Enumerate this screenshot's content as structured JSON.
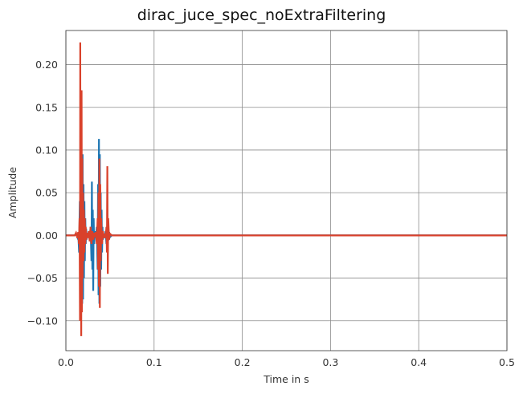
{
  "chart_data": {
    "type": "line",
    "title": "dirac_juce_spec_noExtraFiltering",
    "xlabel": "Time in s",
    "ylabel": "Amplitude",
    "xlim": [
      0.0,
      0.5
    ],
    "ylim": [
      -0.135,
      0.24
    ],
    "grid": true,
    "legend": "none",
    "x_ticks": [
      "0.0",
      "0.1",
      "0.2",
      "0.3",
      "0.4",
      "0.5"
    ],
    "x_tick_values": [
      0.0,
      0.1,
      0.2,
      0.3,
      0.4,
      0.5
    ],
    "y_ticks": [
      "−0.10",
      "−0.05",
      "0.00",
      "0.05",
      "0.10",
      "0.15",
      "0.20"
    ],
    "y_tick_values": [
      -0.1,
      -0.05,
      0.0,
      0.05,
      0.1,
      0.15,
      0.2
    ],
    "series": [
      {
        "color": "#1f77b4",
        "x": [
          0.0,
          0.01,
          0.0115,
          0.013,
          0.014,
          0.015,
          0.0158,
          0.0165,
          0.017,
          0.0175,
          0.018,
          0.0185,
          0.019,
          0.0195,
          0.02,
          0.0205,
          0.021,
          0.0215,
          0.022,
          0.0225,
          0.023,
          0.0235,
          0.024,
          0.025,
          0.026,
          0.027,
          0.028,
          0.029,
          0.0295,
          0.03,
          0.0305,
          0.031,
          0.0315,
          0.032,
          0.033,
          0.034,
          0.035,
          0.036,
          0.0365,
          0.037,
          0.0375,
          0.038,
          0.0385,
          0.039,
          0.0395,
          0.04,
          0.0405,
          0.041,
          0.0415,
          0.042,
          0.043,
          0.044,
          0.045,
          0.046,
          0.047,
          0.048,
          0.049,
          0.05,
          0.052,
          0.06,
          0.5
        ],
        "y": [
          0.0,
          0.0,
          0.002,
          -0.002,
          0.003,
          -0.02,
          0.04,
          -0.06,
          0.05,
          -0.07,
          0.09,
          -0.08,
          0.095,
          -0.075,
          0.06,
          -0.05,
          0.04,
          -0.03,
          0.02,
          -0.01,
          0.008,
          -0.005,
          0.003,
          -0.002,
          0.005,
          -0.006,
          0.01,
          -0.03,
          0.063,
          -0.04,
          0.03,
          -0.065,
          0.02,
          -0.01,
          0.005,
          -0.003,
          0.01,
          -0.04,
          0.06,
          -0.07,
          0.113,
          -0.08,
          0.095,
          -0.06,
          0.05,
          -0.04,
          0.03,
          -0.02,
          0.01,
          -0.005,
          0.002,
          -0.003,
          0.005,
          -0.01,
          0.008,
          -0.006,
          0.004,
          -0.002,
          0.0,
          0.0,
          0.0
        ]
      },
      {
        "color": "#d9412b",
        "x": [
          0.0,
          0.01,
          0.0115,
          0.013,
          0.014,
          0.0148,
          0.0155,
          0.016,
          0.0163,
          0.0166,
          0.017,
          0.0174,
          0.0178,
          0.0182,
          0.0186,
          0.019,
          0.0195,
          0.02,
          0.0205,
          0.021,
          0.0215,
          0.022,
          0.0225,
          0.023,
          0.024,
          0.025,
          0.026,
          0.027,
          0.028,
          0.029,
          0.03,
          0.031,
          0.032,
          0.033,
          0.034,
          0.035,
          0.036,
          0.0365,
          0.037,
          0.0375,
          0.038,
          0.0385,
          0.039,
          0.0395,
          0.04,
          0.041,
          0.042,
          0.043,
          0.044,
          0.045,
          0.046,
          0.0465,
          0.047,
          0.0475,
          0.048,
          0.049,
          0.05,
          0.052,
          0.06,
          0.5
        ],
        "y": [
          0.0,
          0.0,
          0.003,
          -0.003,
          0.004,
          -0.01,
          0.02,
          -0.1,
          0.226,
          -0.06,
          0.06,
          -0.118,
          0.17,
          -0.09,
          0.09,
          -0.05,
          0.05,
          -0.03,
          0.03,
          -0.02,
          0.02,
          -0.01,
          0.01,
          -0.005,
          0.003,
          -0.003,
          0.005,
          -0.007,
          0.01,
          -0.01,
          0.005,
          -0.005,
          0.003,
          -0.002,
          0.004,
          -0.01,
          0.02,
          -0.04,
          0.05,
          -0.06,
          0.09,
          -0.085,
          0.06,
          -0.03,
          0.02,
          -0.01,
          0.005,
          -0.003,
          0.002,
          -0.003,
          0.01,
          -0.02,
          0.081,
          -0.045,
          0.02,
          -0.005,
          0.002,
          0.0,
          0.0,
          0.0
        ]
      }
    ]
  }
}
